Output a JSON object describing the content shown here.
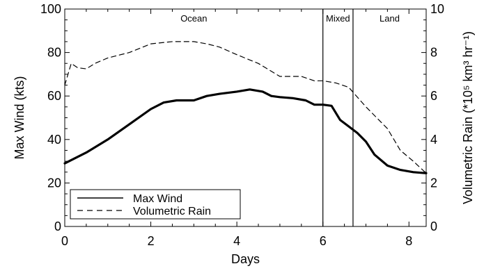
{
  "chart_data": {
    "type": "line",
    "xlabel": "Days",
    "ylabel_left": "Max Wind (kts)",
    "ylabel_right": "Volumetric Rain (*10⁵ km³ hr⁻¹)",
    "xlim": [
      0,
      8.4
    ],
    "ylim_left": [
      0,
      100
    ],
    "ylim_right": [
      0,
      10
    ],
    "x_ticks": [
      0,
      2,
      4,
      6,
      8
    ],
    "y_ticks_left": [
      0,
      20,
      40,
      60,
      80,
      100
    ],
    "y_ticks_right": [
      0,
      2,
      4,
      6,
      8,
      10
    ],
    "grid": false,
    "legend_position": "bottom-left",
    "regions": [
      {
        "label": "Ocean",
        "x_start": 0,
        "x_end": 6.0
      },
      {
        "label": "Mixed",
        "x_start": 6.0,
        "x_end": 6.7
      },
      {
        "label": "Land",
        "x_start": 6.7,
        "x_end": 8.4
      }
    ],
    "series": [
      {
        "name": "Max Wind",
        "axis": "left",
        "style": "solid",
        "x": [
          0,
          0.5,
          1.0,
          1.5,
          2.0,
          2.3,
          2.6,
          3.0,
          3.3,
          3.6,
          4.0,
          4.3,
          4.6,
          4.8,
          5.0,
          5.3,
          5.6,
          5.8,
          6.0,
          6.2,
          6.4,
          6.6,
          6.8,
          7.0,
          7.2,
          7.5,
          7.8,
          8.1,
          8.4
        ],
        "values": [
          29,
          34,
          40,
          47,
          54,
          57,
          58,
          58,
          60,
          61,
          62,
          63,
          62,
          60,
          59.5,
          59,
          58,
          56,
          56,
          55.5,
          49,
          46,
          43,
          39,
          33,
          28,
          26,
          25,
          24.5
        ]
      },
      {
        "name": "Volumetric Rain",
        "axis": "right",
        "style": "dashed",
        "x": [
          0,
          0.15,
          0.3,
          0.5,
          0.7,
          1.0,
          1.5,
          2.0,
          2.5,
          3.0,
          3.3,
          3.6,
          4.0,
          4.5,
          5.0,
          5.5,
          5.8,
          6.0,
          6.3,
          6.6,
          7.0,
          7.5,
          7.8,
          8.1,
          8.4
        ],
        "values": [
          6.5,
          7.5,
          7.3,
          7.25,
          7.5,
          7.75,
          8.0,
          8.4,
          8.5,
          8.5,
          8.4,
          8.25,
          7.9,
          7.5,
          6.9,
          6.9,
          6.7,
          6.7,
          6.6,
          6.4,
          5.5,
          4.5,
          3.5,
          3.0,
          2.45
        ]
      }
    ]
  }
}
